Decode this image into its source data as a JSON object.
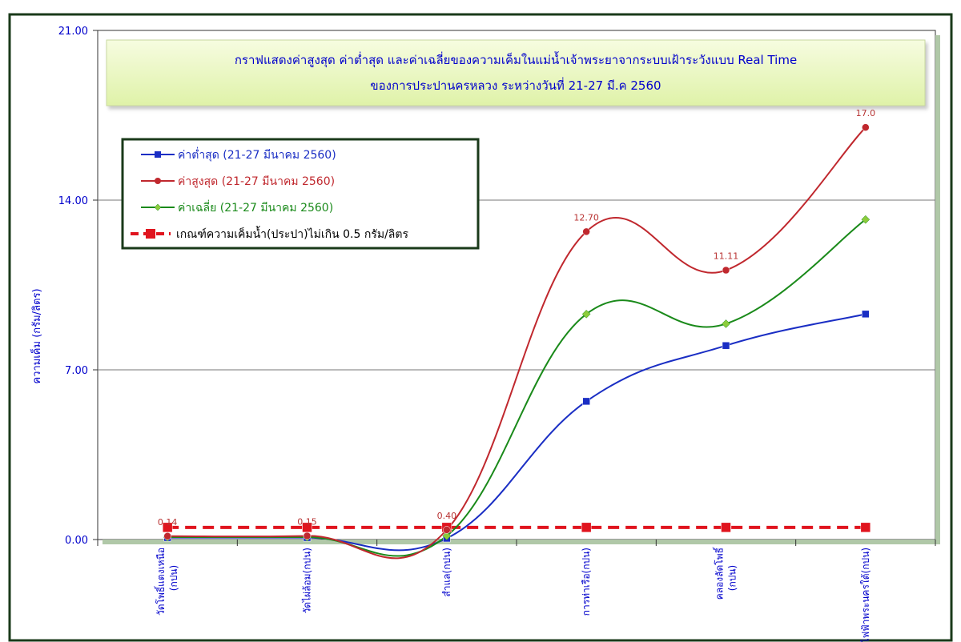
{
  "colors": {
    "min": "#1a2ec4",
    "max": "#c0282e",
    "avg": "#1a8a1a",
    "criteria": "#e0141e",
    "axis_text": "#0000cc",
    "frame": "#1a3a1a",
    "title_bg": "#eef8c8"
  },
  "chart_data": {
    "type": "line",
    "title": "กราฟแสดงค่าสูงสุด ค่าต่ำสุด และค่าเฉลี่ยของความเค็มในแม่น้ำเจ้าพระยาจากระบบเฝ้าระวังแบบ Real Time",
    "subtitle": "ของการประปานครหลวง ระหว่างวันที่  21-27  มี.ค 2560",
    "ylabel": "ความเค็ม (กรัม/ลิตร)",
    "ylim": [
      0,
      21
    ],
    "yticks": [
      "0.00",
      "7.00",
      "14.00",
      "21.00"
    ],
    "ytick_values": [
      0,
      7,
      14,
      21
    ],
    "grid": true,
    "legend_position": "top-left",
    "categories": [
      "วัดโพธิ์แตงเหนือ (กปน)",
      "วัดไผ่ล้อม(กปน)",
      "สำแล(กปน)",
      "การท่าเรือ(กปน)",
      "คลองลัดโพธิ์ (กปน)",
      "โรงไฟฟ้าพระนครใต้(กปน)"
    ],
    "series": [
      {
        "name": "ค่าต่ำสุด (21-27 มีนาคม 2560)",
        "key": "min",
        "values": [
          0.08,
          0.08,
          0.05,
          5.7,
          8.0,
          9.3
        ]
      },
      {
        "name": "ค่าสูงสุด (21-27 มีนาคม 2560)",
        "key": "max",
        "values": [
          0.14,
          0.15,
          0.4,
          12.7,
          11.11,
          17.0
        ]
      },
      {
        "name": "ค่าเฉลี่ย (21-27 มีนาคม 2560)",
        "key": "avg",
        "values": [
          0.1,
          0.1,
          0.15,
          9.3,
          8.9,
          13.2
        ]
      },
      {
        "name": "เกณฑ์ความเค็มน้ำ(ประปา)ไม่เกิน 0.5 กรัม/ลิตร",
        "key": "criteria",
        "values": [
          0.5,
          0.5,
          0.5,
          0.5,
          0.5,
          0.5
        ]
      }
    ],
    "data_labels": [
      "0.14",
      "0.15",
      "0.40",
      "12.70",
      "11.11",
      "17.0"
    ]
  }
}
